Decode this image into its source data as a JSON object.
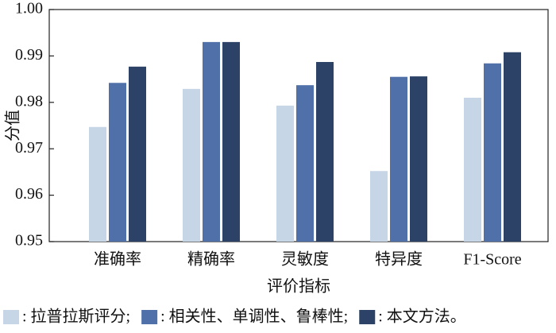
{
  "chart_data": {
    "type": "bar",
    "y_label": "分值",
    "x_label": "评价指标",
    "categories": [
      "准确率",
      "精确率",
      "灵敏度",
      "特异度",
      "F1-Score"
    ],
    "series": [
      {
        "name": ": 拉普拉斯评分;",
        "color": "#c6d6e7",
        "values": [
          0.9747,
          0.9829,
          0.9793,
          0.9652,
          0.981
        ]
      },
      {
        "name": ": 相关性、单调性、鲁棒性;",
        "color": "#4f70a9",
        "values": [
          0.9842,
          0.993,
          0.9837,
          0.9855,
          0.9884
        ]
      },
      {
        "name": ": 本文方法。",
        "color": "#2d4267",
        "values": [
          0.9877,
          0.993,
          0.9887,
          0.9856,
          0.9908
        ]
      }
    ],
    "ylim": [
      0.95,
      1
    ],
    "yticks": [
      0.95,
      0.96,
      0.97,
      0.98,
      0.99,
      {
        "value": 1,
        "label": "1.00"
      }
    ]
  }
}
